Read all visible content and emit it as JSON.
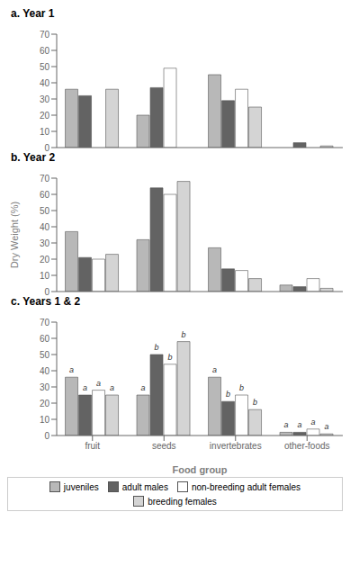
{
  "chart_data": [
    {
      "type": "bar",
      "title": "a.  Year 1",
      "categories": [
        "fruit",
        "seeds",
        "invertebrates",
        "other-foods"
      ],
      "series": [
        {
          "name": "juveniles",
          "color": "#b8b8b8",
          "values": [
            36,
            20,
            45,
            0
          ]
        },
        {
          "name": "adult males",
          "color": "#636363",
          "values": [
            32,
            37,
            29,
            3
          ]
        },
        {
          "name": "non-breeding adult females",
          "color": "#ffffff",
          "values": [
            0,
            49,
            36,
            0
          ]
        },
        {
          "name": "breeding females",
          "color": "#d4d4d4",
          "values": [
            36,
            0,
            25,
            1
          ]
        }
      ],
      "ylim": [
        0,
        70
      ],
      "yticks": [
        0,
        10,
        20,
        30,
        40,
        50,
        60,
        70
      ],
      "grid": false,
      "tick_labels": "y"
    },
    {
      "type": "bar",
      "title": "b.  Year 2",
      "ylabel": "Dry Weight (%)",
      "categories": [
        "fruit",
        "seeds",
        "invertebrates",
        "other-foods"
      ],
      "series": [
        {
          "name": "juveniles",
          "color": "#b8b8b8",
          "values": [
            37,
            32,
            27,
            4
          ]
        },
        {
          "name": "adult males",
          "color": "#636363",
          "values": [
            21,
            64,
            14,
            3
          ]
        },
        {
          "name": "non-breeding adult females",
          "color": "#ffffff",
          "values": [
            20,
            60,
            13,
            8
          ]
        },
        {
          "name": "breeding females",
          "color": "#d4d4d4",
          "values": [
            23,
            68,
            8,
            2
          ]
        }
      ],
      "ylim": [
        0,
        70
      ],
      "yticks": [
        0,
        10,
        20,
        30,
        40,
        50,
        60,
        70
      ],
      "grid": false,
      "tick_labels": "y"
    },
    {
      "type": "bar",
      "title": "c.  Years 1 & 2",
      "xlabel": "Food group",
      "categories": [
        "fruit",
        "seeds",
        "invertebrates",
        "other-foods"
      ],
      "series": [
        {
          "name": "juveniles",
          "color": "#b8b8b8",
          "values": [
            36,
            25,
            36,
            2
          ],
          "annotations": [
            "a",
            "a",
            "a",
            "a"
          ]
        },
        {
          "name": "adult males",
          "color": "#636363",
          "values": [
            25,
            50,
            21,
            2
          ],
          "annotations": [
            "a",
            "b",
            "b",
            "a"
          ]
        },
        {
          "name": "non-breeding adult females",
          "color": "#ffffff",
          "values": [
            28,
            44,
            25,
            4
          ],
          "annotations": [
            "a",
            "b",
            "b",
            "a"
          ]
        },
        {
          "name": "breeding females",
          "color": "#d4d4d4",
          "values": [
            25,
            58,
            16,
            1
          ],
          "annotations": [
            "a",
            "b",
            "b",
            "a"
          ]
        }
      ],
      "ylim": [
        0,
        70
      ],
      "yticks": [
        0,
        10,
        20,
        30,
        40,
        50,
        60,
        70
      ],
      "grid": false,
      "legend": "bottom"
    }
  ]
}
